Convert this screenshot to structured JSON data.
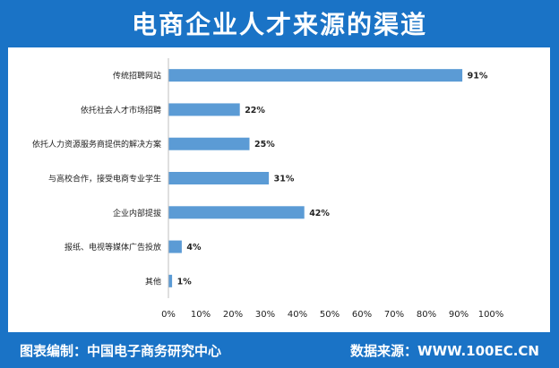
{
  "header": {
    "title": "电商企业人才来源的渠道"
  },
  "footer": {
    "compiler": "图表编制：中国电子商务研究中心",
    "source": "数据来源：WWW.100EC.CN"
  },
  "colors": {
    "bar": "#5b9bd5",
    "background": "#1a73c6",
    "panel": "#ffffff",
    "text": "#222222",
    "axis": "#bfbfbf"
  },
  "chart_data": {
    "type": "bar",
    "orientation": "horizontal",
    "categories": [
      "传统招聘网站",
      "依托社会人才市场招聘",
      "依托人力资源服务商提供的解决方案",
      "与高校合作，接受电商专业学生",
      "企业内部提拔",
      "报纸、电视等媒体广告投放",
      "其他"
    ],
    "values": [
      91,
      22,
      25,
      31,
      42,
      4,
      1
    ],
    "value_labels": [
      "91%",
      "22%",
      "25%",
      "31%",
      "42%",
      "4%",
      "1%"
    ],
    "xlim": [
      0,
      100
    ],
    "xticks": [
      "0%",
      "10%",
      "20%",
      "30%",
      "40%",
      "50%",
      "60%",
      "70%",
      "80%",
      "90%",
      "100%"
    ],
    "title": "",
    "xlabel": "",
    "ylabel": "",
    "grid": false,
    "legend": "none"
  }
}
